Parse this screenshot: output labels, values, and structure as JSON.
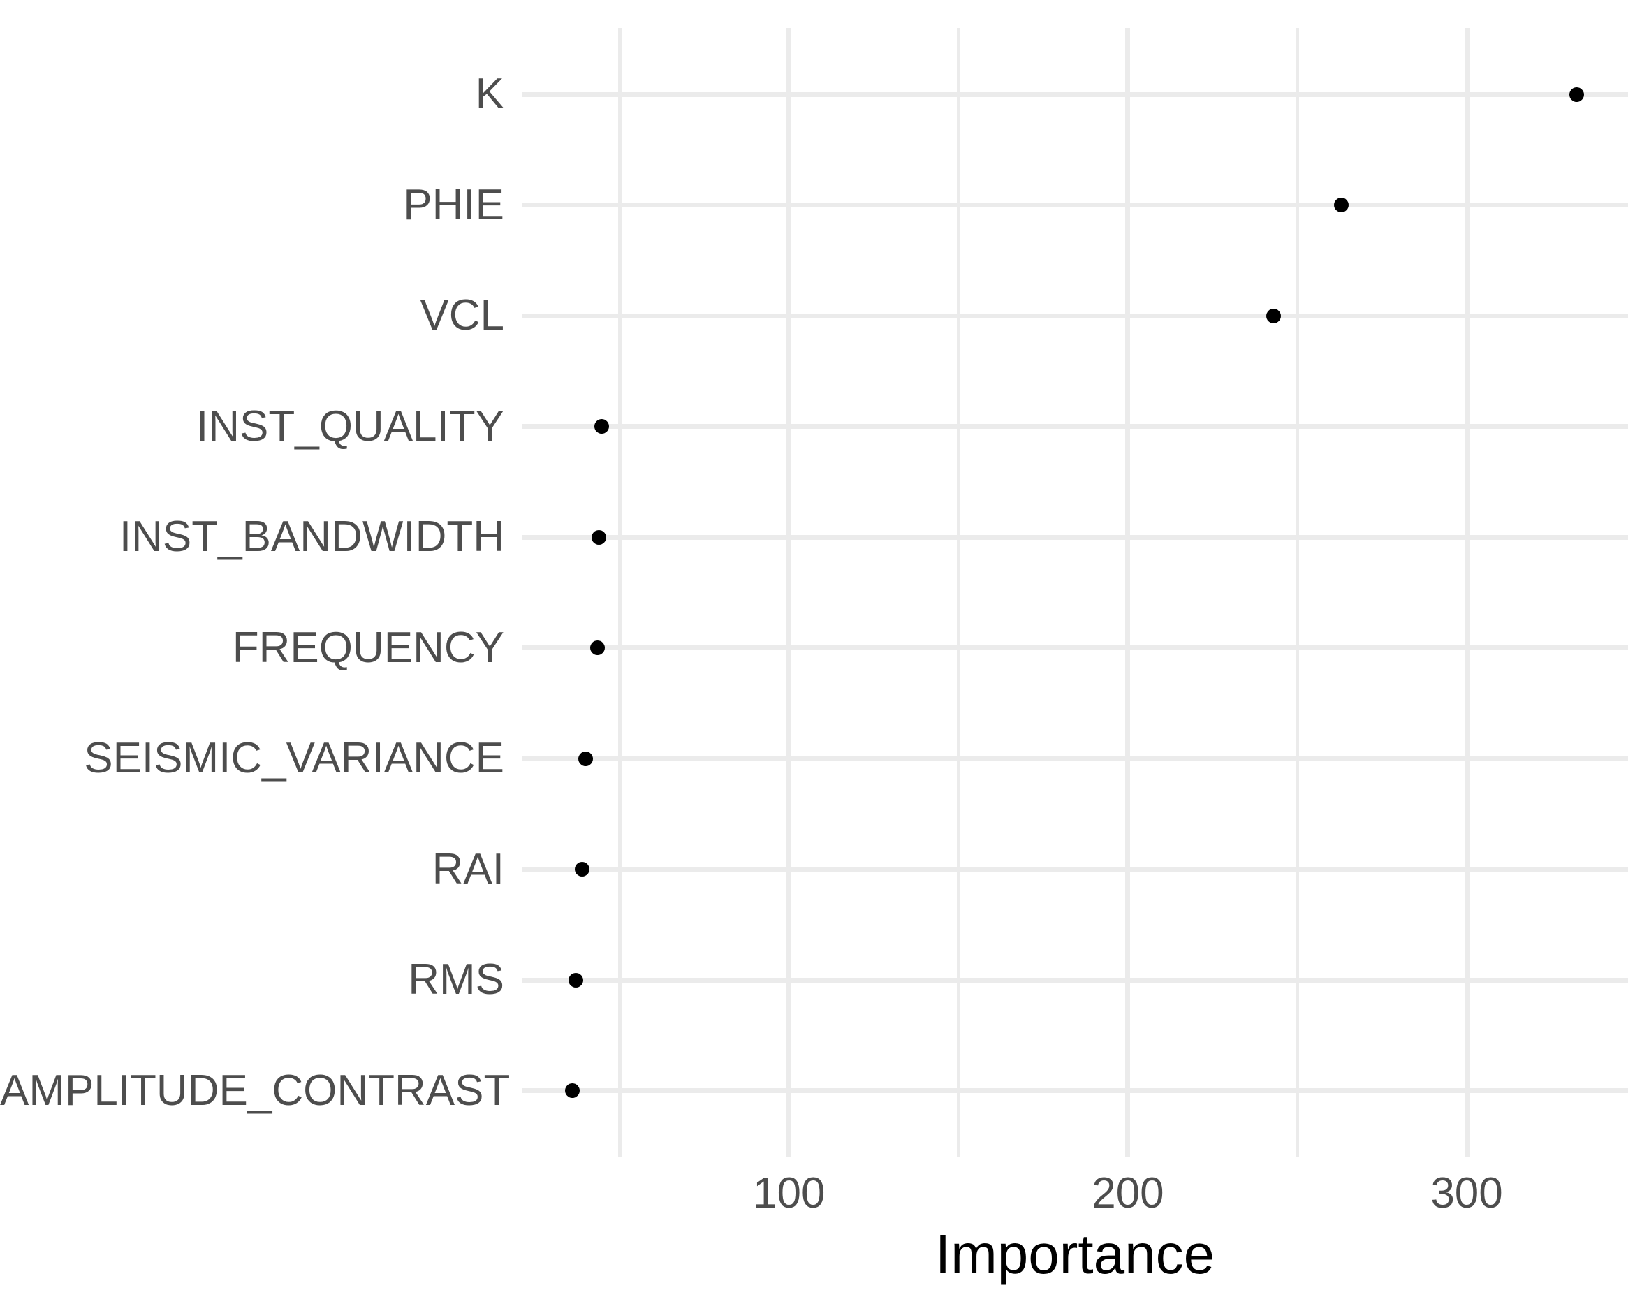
{
  "chart_data": {
    "type": "scatter",
    "subtype": "horizontal-dot-plot",
    "title": "",
    "xlabel": "Importance",
    "ylabel": "",
    "categories": [
      "K",
      "PHIE",
      "VCL",
      "INST_QUALITY",
      "INST_BANDWIDTH",
      "FREQUENCY",
      "SEISMIC_VARIANCE",
      "RAI",
      "RMS",
      "AMPLITUDE_CONTRAST"
    ],
    "values": [
      332.5,
      263,
      243,
      44.7,
      43.9,
      43.5,
      40,
      38.9,
      37.1,
      36
    ],
    "xlim": [
      21.1,
      347.6
    ],
    "x_major_ticks": [
      100,
      200,
      300
    ],
    "x_tick_labels": [
      "100",
      "200",
      "300"
    ],
    "x_minor_ticks": [
      50,
      150,
      250
    ],
    "grid": true,
    "legend": null,
    "point_color": "#000000",
    "grid_color": "#EBEBEB",
    "axis_text_color": "#4D4D4D",
    "axis_title_color": "#000000",
    "background_color": "#FFFFFF"
  }
}
